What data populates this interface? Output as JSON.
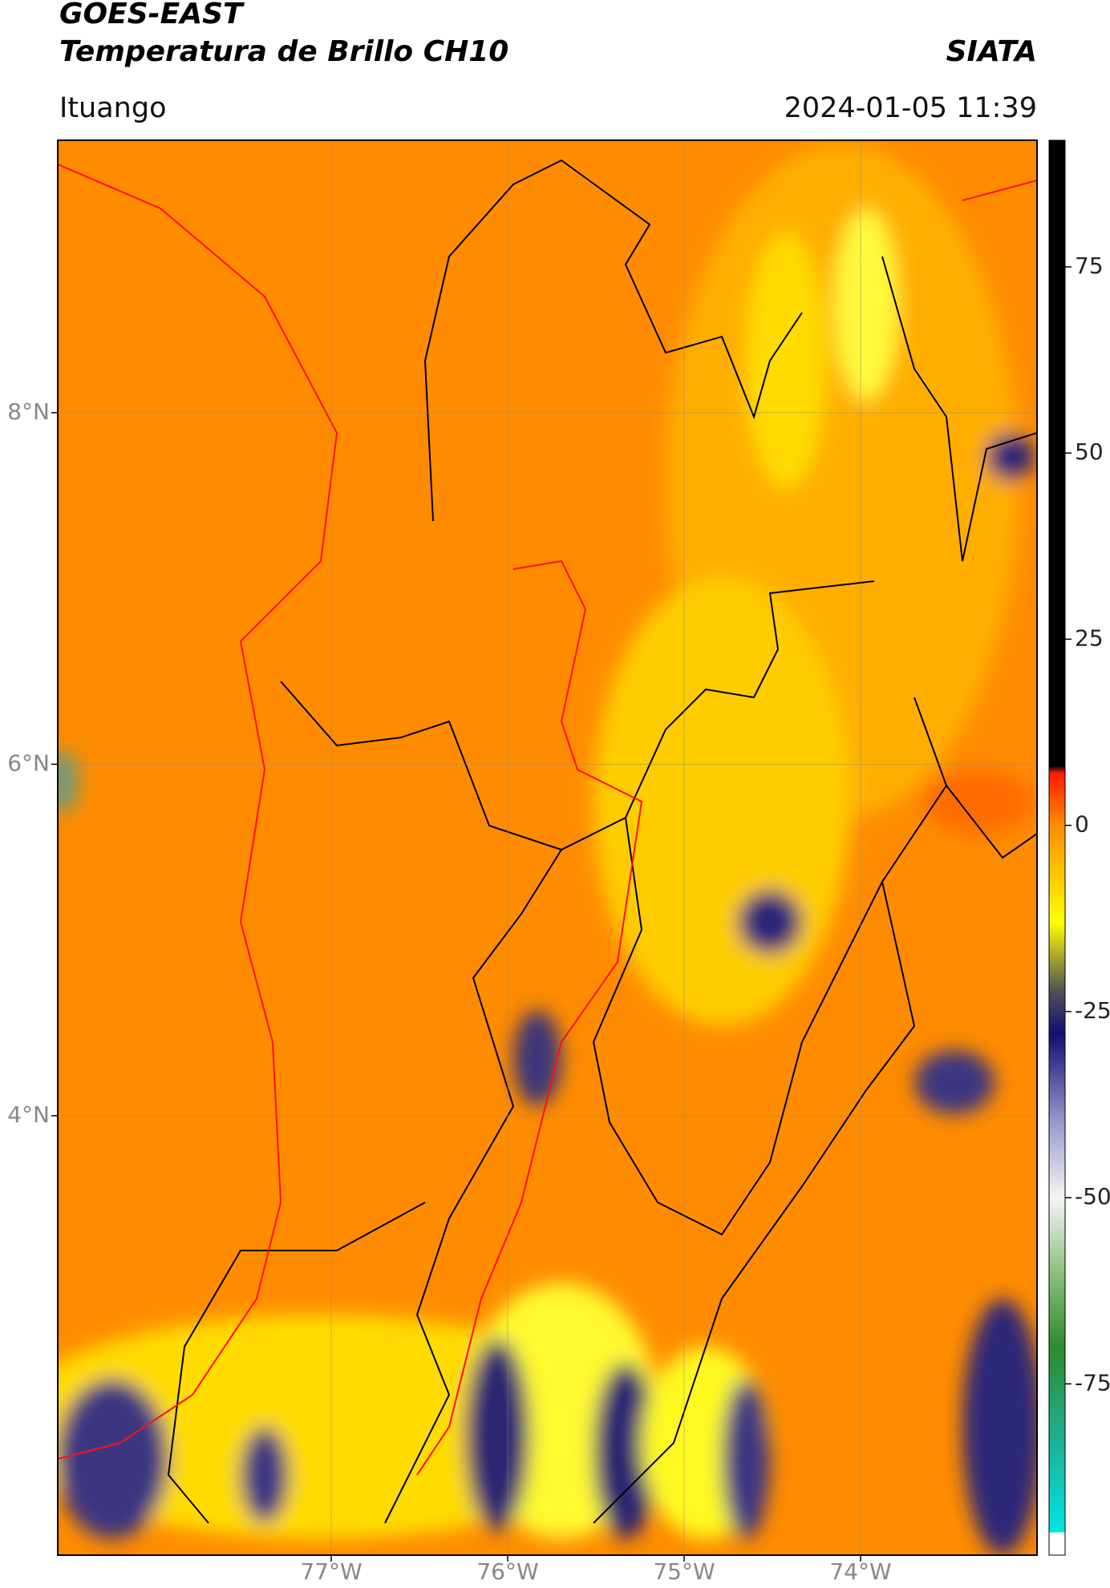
{
  "chart_data": {
    "type": "map",
    "title": "GOES-EAST",
    "subtitle": "Temperatura de Brillo CH10",
    "source": "SIATA",
    "location": "Ituango",
    "datetime": "2024-01-05 11:39",
    "xlim": [
      -78.55,
      -73.0
    ],
    "ylim": [
      1.5,
      9.55
    ],
    "xticks": [
      {
        "value": -77,
        "label": "77°W"
      },
      {
        "value": -76,
        "label": "76°W"
      },
      {
        "value": -75,
        "label": "75°W"
      },
      {
        "value": -74,
        "label": "74°W"
      }
    ],
    "yticks": [
      {
        "value": 8,
        "label": "8°N"
      },
      {
        "value": 6,
        "label": "6°N"
      },
      {
        "value": 4,
        "label": "4°N"
      }
    ],
    "grid": true,
    "colorbar": {
      "lim": [
        -98,
        92
      ],
      "ticks": [
        75,
        50,
        25,
        0,
        -25,
        -50,
        -75
      ],
      "stops": [
        {
          "value": -98,
          "color": "#ffffff"
        },
        {
          "value": -95,
          "color": "#ffffff"
        },
        {
          "value": -94.9,
          "color": "#00e5e5"
        },
        {
          "value": -82,
          "color": "#1fae8f"
        },
        {
          "value": -70,
          "color": "#2e8b2e"
        },
        {
          "value": -60,
          "color": "#8fbf7f"
        },
        {
          "value": -50,
          "color": "#f5f5f5"
        },
        {
          "value": -40,
          "color": "#9a9ad0"
        },
        {
          "value": -28,
          "color": "#101070"
        },
        {
          "value": -22,
          "color": "#555555"
        },
        {
          "value": -18,
          "color": "#a0a030"
        },
        {
          "value": -13,
          "color": "#ffff00"
        },
        {
          "value": 0,
          "color": "#ff8c00"
        },
        {
          "value": 7,
          "color": "#ff1a00"
        },
        {
          "value": 8,
          "color": "#000000"
        },
        {
          "value": 92,
          "color": "#000000"
        }
      ]
    }
  }
}
